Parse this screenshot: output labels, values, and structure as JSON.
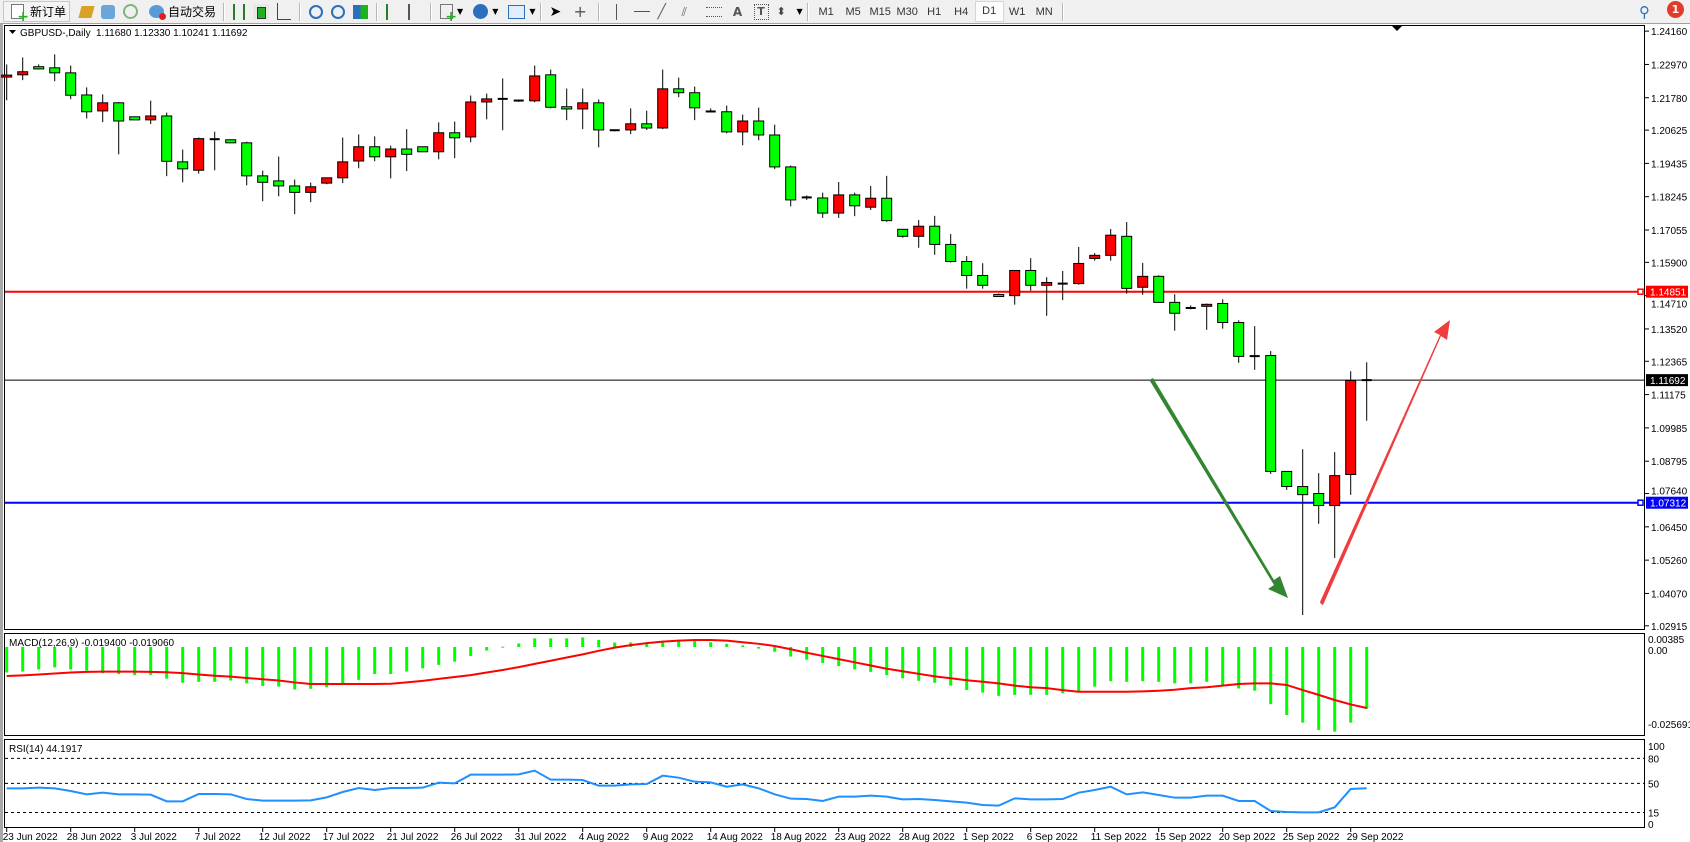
{
  "toolbar": {
    "new_order_label": "新订单",
    "auto_trade_label": "自动交易",
    "icons": [
      "new-order-icon",
      "market-watch-icon",
      "navigator-icon",
      "signals-icon",
      "auto-trading-icon",
      "bar-chart-icon",
      "candlestick-icon",
      "line-chart-icon",
      "zoom-in-icon",
      "zoom-out-icon",
      "tile-windows-icon",
      "chart-shift-icon",
      "autoscroll-icon",
      "indicators-icon",
      "periodicity-icon",
      "templates-icon",
      "cursor-icon",
      "crosshair-icon",
      "vertical-line-icon",
      "horizontal-line-icon",
      "trendline-icon",
      "equidistant-channel-icon",
      "fibonacci-icon",
      "text-icon",
      "text-label-icon",
      "arrows-icon"
    ],
    "timeframes": [
      "M1",
      "M5",
      "M15",
      "M30",
      "H1",
      "H4",
      "D1",
      "W1",
      "MN"
    ],
    "active_timeframe": "D1",
    "notification_count": "1"
  },
  "chart_header": {
    "symbol_period": "GBPUSD-,Daily",
    "ohlc": "1.11680 1.12330 1.10241 1.11692"
  },
  "chart_data": {
    "type": "candlestick",
    "symbol": "GBPUSD-",
    "period": "Daily",
    "bull_color": "#ff0000",
    "bear_color": "#00ff00",
    "y_ticks": [
      "1.24160",
      "1.22970",
      "1.21780",
      "1.20625",
      "1.19435",
      "1.18245",
      "1.17055",
      "1.15900",
      "1.14710",
      "1.13520",
      "1.12365",
      "1.11175",
      "1.09985",
      "1.08795",
      "1.07640",
      "1.06450",
      "1.05260",
      "1.04070",
      "1.02915"
    ],
    "ylim": [
      1.02915,
      1.2416
    ],
    "x_tick_labels": [
      "23 Jun 2022",
      "28 Jun 2022",
      "3 Jul 2022",
      "7 Jul 2022",
      "12 Jul 2022",
      "17 Jul 2022",
      "21 Jul 2022",
      "26 Jul 2022",
      "31 Jul 2022",
      "4 Aug 2022",
      "9 Aug 2022",
      "14 Aug 2022",
      "18 Aug 2022",
      "23 Aug 2022",
      "28 Aug 2022",
      "1 Sep 2022",
      "6 Sep 2022",
      "11 Sep 2022",
      "15 Sep 2022",
      "20 Sep 2022",
      "25 Sep 2022",
      "29 Sep 2022"
    ],
    "ohlc": [
      [
        1.2254,
        1.2297,
        1.2169,
        1.2259
      ],
      [
        1.226,
        1.2322,
        1.2241,
        1.2271
      ],
      [
        1.2289,
        1.2297,
        1.2279,
        1.2281
      ],
      [
        1.2285,
        1.2333,
        1.2237,
        1.2267
      ],
      [
        1.2267,
        1.2293,
        1.2173,
        1.2187
      ],
      [
        1.2188,
        1.2215,
        1.2104,
        1.2128
      ],
      [
        1.2131,
        1.219,
        1.2091,
        1.216
      ],
      [
        1.216,
        1.2163,
        1.1976,
        1.2095
      ],
      [
        1.211,
        1.2111,
        1.2098,
        1.2099
      ],
      [
        1.2099,
        1.2168,
        1.2084,
        1.2113
      ],
      [
        1.2113,
        1.2125,
        1.1898,
        1.1951
      ],
      [
        1.1949,
        1.1993,
        1.1876,
        1.1924
      ],
      [
        1.1919,
        1.2036,
        1.1907,
        1.2032
      ],
      [
        1.2031,
        1.2057,
        1.1919,
        1.203
      ],
      [
        1.2028,
        1.2029,
        1.2016,
        1.2017
      ],
      [
        1.2017,
        1.2021,
        1.1865,
        1.1899
      ],
      [
        1.1899,
        1.1918,
        1.1808,
        1.1876
      ],
      [
        1.1881,
        1.1968,
        1.1826,
        1.1863
      ],
      [
        1.1863,
        1.1886,
        1.1762,
        1.184
      ],
      [
        1.184,
        1.1875,
        1.1805,
        1.186
      ],
      [
        1.1873,
        1.1892,
        1.1869,
        1.1892
      ],
      [
        1.1892,
        1.2036,
        1.1873,
        1.1949
      ],
      [
        1.1952,
        1.2047,
        1.1926,
        1.2003
      ],
      [
        1.2003,
        1.204,
        1.1951,
        1.1967
      ],
      [
        1.1967,
        1.2007,
        1.189,
        1.1995
      ],
      [
        1.1995,
        1.2066,
        1.1916,
        1.1976
      ],
      [
        1.2003,
        1.2004,
        1.1984,
        1.1985
      ],
      [
        1.1985,
        1.209,
        1.1958,
        1.2053
      ],
      [
        1.2053,
        1.2093,
        1.1962,
        1.2035
      ],
      [
        1.2038,
        1.2186,
        1.2019,
        1.2163
      ],
      [
        1.2163,
        1.2193,
        1.2101,
        1.2174
      ],
      [
        1.2174,
        1.2247,
        1.2062,
        1.2174
      ],
      [
        1.217,
        1.2172,
        1.2163,
        1.2168
      ],
      [
        1.2167,
        1.2293,
        1.2162,
        1.2256
      ],
      [
        1.226,
        1.2279,
        1.214,
        1.2144
      ],
      [
        1.2146,
        1.2211,
        1.2098,
        1.2138
      ],
      [
        1.2138,
        1.2211,
        1.2066,
        1.216
      ],
      [
        1.216,
        1.2172,
        1.2001,
        1.2063
      ],
      [
        1.2063,
        1.2063,
        1.2058,
        1.2062
      ],
      [
        1.2063,
        1.214,
        1.2048,
        1.2085
      ],
      [
        1.2085,
        1.2132,
        1.2063,
        1.207
      ],
      [
        1.207,
        1.2279,
        1.2066,
        1.221
      ],
      [
        1.221,
        1.225,
        1.218,
        1.2196
      ],
      [
        1.2196,
        1.2218,
        1.2098,
        1.2142
      ],
      [
        1.2131,
        1.214,
        1.2126,
        1.2129
      ],
      [
        1.2128,
        1.215,
        1.2051,
        1.2056
      ],
      [
        1.2056,
        1.2118,
        1.2008,
        1.2095
      ],
      [
        1.2095,
        1.2143,
        1.2026,
        1.2045
      ],
      [
        1.2045,
        1.2082,
        1.1923,
        1.1931
      ],
      [
        1.1931,
        1.1936,
        1.179,
        1.1813
      ],
      [
        1.1824,
        1.1829,
        1.1813,
        1.1822
      ],
      [
        1.182,
        1.1839,
        1.1749,
        1.1766
      ],
      [
        1.1766,
        1.1877,
        1.1749,
        1.1831
      ],
      [
        1.1831,
        1.1839,
        1.1755,
        1.1792
      ],
      [
        1.1787,
        1.1863,
        1.1777,
        1.1819
      ],
      [
        1.1819,
        1.1899,
        1.1735,
        1.1739
      ],
      [
        1.1708,
        1.1709,
        1.1678,
        1.1683
      ],
      [
        1.1683,
        1.1741,
        1.1642,
        1.1719
      ],
      [
        1.1719,
        1.1756,
        1.1617,
        1.1654
      ],
      [
        1.1654,
        1.1691,
        1.1589,
        1.1593
      ],
      [
        1.1593,
        1.1612,
        1.1496,
        1.1543
      ],
      [
        1.1543,
        1.1587,
        1.1496,
        1.1508
      ],
      [
        1.1475,
        1.1479,
        1.1467,
        1.1468
      ],
      [
        1.1471,
        1.1561,
        1.1439,
        1.1561
      ],
      [
        1.1561,
        1.1605,
        1.1489,
        1.1508
      ],
      [
        1.1508,
        1.1537,
        1.1399,
        1.1518
      ],
      [
        1.1516,
        1.1559,
        1.1455,
        1.1514
      ],
      [
        1.1514,
        1.1645,
        1.151,
        1.1586
      ],
      [
        1.1604,
        1.1623,
        1.1596,
        1.1615
      ],
      [
        1.1615,
        1.1709,
        1.1596,
        1.1687
      ],
      [
        1.1683,
        1.1734,
        1.1478,
        1.1497
      ],
      [
        1.1501,
        1.1588,
        1.1474,
        1.154
      ],
      [
        1.154,
        1.1544,
        1.1445,
        1.1447
      ],
      [
        1.1447,
        1.1476,
        1.1346,
        1.1408
      ],
      [
        1.1429,
        1.1436,
        1.1422,
        1.1427
      ],
      [
        1.1433,
        1.1443,
        1.1349,
        1.144
      ],
      [
        1.1443,
        1.1458,
        1.1353,
        1.1375
      ],
      [
        1.1375,
        1.1383,
        1.1231,
        1.1254
      ],
      [
        1.1257,
        1.1362,
        1.1206,
        1.1255
      ],
      [
        1.1257,
        1.1273,
        1.0834,
        1.0843
      ],
      [
        1.0843,
        1.0843,
        1.0777,
        1.0789
      ],
      [
        1.0789,
        1.0922,
        1.033,
        1.076
      ],
      [
        1.0764,
        1.0837,
        1.0656,
        1.0721
      ],
      [
        1.0721,
        1.0912,
        1.0534,
        1.0828
      ],
      [
        1.0832,
        1.1201,
        1.0759,
        1.1168
      ],
      [
        1.1168,
        1.1233,
        1.10241,
        1.11692
      ]
    ],
    "horizontal_lines": [
      {
        "price": "1.14851",
        "color": "#ff0000"
      },
      {
        "price": "1.07312",
        "color": "#0000ff"
      }
    ],
    "bid_line": {
      "price": "1.11692",
      "color": "#000000"
    },
    "annotations": [
      {
        "type": "arrow",
        "direction": "down",
        "color": "#31862f"
      },
      {
        "type": "arrow",
        "direction": "up",
        "color": "#f03c3c"
      }
    ]
  },
  "macd": {
    "label": "MACD(12,26,9) -0.019400 -0.019060",
    "y_ticks": [
      "0.00385",
      "0.00",
      "-0.025691"
    ],
    "ylim": [
      -0.025691,
      0.00385
    ],
    "histogram_color": "#00ff00",
    "signal_color": "#ff0000",
    "histogram": [
      -0.008,
      -0.0077,
      -0.007,
      -0.0064,
      -0.007,
      -0.0074,
      -0.0082,
      -0.0085,
      -0.0088,
      -0.0088,
      -0.0099,
      -0.0112,
      -0.0109,
      -0.0109,
      -0.0105,
      -0.0114,
      -0.0122,
      -0.0124,
      -0.0133,
      -0.0131,
      -0.0126,
      -0.0114,
      -0.0103,
      -0.0085,
      -0.0085,
      -0.0077,
      -0.0067,
      -0.0056,
      -0.0046,
      -0.0028,
      -0.0011,
      0.0001,
      0.0011,
      0.0027,
      0.0027,
      0.0027,
      0.003,
      0.0022,
      0.0014,
      0.0014,
      0.0011,
      0.0019,
      0.0019,
      0.0019,
      0.0015,
      0.001,
      0.0005,
      -0.0005,
      -0.0015,
      -0.003,
      -0.004,
      -0.005,
      -0.006,
      -0.007,
      -0.0078,
      -0.0088,
      -0.0098,
      -0.0106,
      -0.0112,
      -0.0121,
      -0.0135,
      -0.0143,
      -0.0153,
      -0.015,
      -0.015,
      -0.015,
      -0.0145,
      -0.0138,
      -0.0124,
      -0.0107,
      -0.0109,
      -0.0107,
      -0.0109,
      -0.0114,
      -0.0114,
      -0.0109,
      -0.0119,
      -0.013,
      -0.0137,
      -0.0179,
      -0.0213,
      -0.0237,
      -0.026,
      -0.0265,
      -0.0237,
      -0.0194
    ],
    "signal": [
      -0.0091,
      -0.0089,
      -0.0086,
      -0.0083,
      -0.008,
      -0.0078,
      -0.0077,
      -0.0077,
      -0.0077,
      -0.0078,
      -0.0079,
      -0.0082,
      -0.0086,
      -0.009,
      -0.0093,
      -0.0097,
      -0.0101,
      -0.0105,
      -0.0111,
      -0.0116,
      -0.0116,
      -0.0116,
      -0.0116,
      -0.0116,
      -0.0115,
      -0.0111,
      -0.0106,
      -0.01,
      -0.0094,
      -0.0088,
      -0.008,
      -0.0072,
      -0.0063,
      -0.0053,
      -0.0043,
      -0.0033,
      -0.0023,
      -0.0012,
      -0.0002,
      0.0006,
      0.0012,
      0.0017,
      0.002,
      0.0022,
      0.0022,
      0.002,
      0.0015,
      0.001,
      0.0003,
      -0.0007,
      -0.0018,
      -0.0028,
      -0.0038,
      -0.0048,
      -0.0058,
      -0.0068,
      -0.0076,
      -0.0084,
      -0.0092,
      -0.0098,
      -0.0104,
      -0.0109,
      -0.0114,
      -0.0121,
      -0.0126,
      -0.0129,
      -0.0135,
      -0.014,
      -0.014,
      -0.014,
      -0.014,
      -0.0139,
      -0.0137,
      -0.0134,
      -0.0129,
      -0.0126,
      -0.0121,
      -0.0116,
      -0.0114,
      -0.0114,
      -0.0119,
      -0.0135,
      -0.015,
      -0.0166,
      -0.018,
      -0.0191
    ]
  },
  "rsi": {
    "label": "RSI(14) 44.1917",
    "y_ticks": [
      "100",
      "80",
      "50",
      "15",
      "0"
    ],
    "levels": [
      80,
      50,
      15
    ],
    "line_color": "#1e90ff",
    "values": [
      44.0,
      44.0,
      44.8,
      44.0,
      40.8,
      36.8,
      38.8,
      36.8,
      36.8,
      36.4,
      28.4,
      28.4,
      37.2,
      37.2,
      36.8,
      31.2,
      29.2,
      29.2,
      29.2,
      29.6,
      33.2,
      39.6,
      44.4,
      42.0,
      44.4,
      44.4,
      44.8,
      50.8,
      50.0,
      60.4,
      60.4,
      60.4,
      60.8,
      65.2,
      54.4,
      54.4,
      54.0,
      47.2,
      47.2,
      48.8,
      49.2,
      59.2,
      56.8,
      52.0,
      51.2,
      46.0,
      48.8,
      44.0,
      36.8,
      31.6,
      31.2,
      28.8,
      34.0,
      34.0,
      35.2,
      34.0,
      30.8,
      31.2,
      30.0,
      28.4,
      26.8,
      24.0,
      23.2,
      32.0,
      30.8,
      30.8,
      31.2,
      38.8,
      42.0,
      46.0,
      36.8,
      39.2,
      36.0,
      32.8,
      32.8,
      35.2,
      35.2,
      28.8,
      28.8,
      16.8,
      15.6,
      15.2,
      15.2,
      21.2,
      43.2,
      44.19
    ]
  }
}
